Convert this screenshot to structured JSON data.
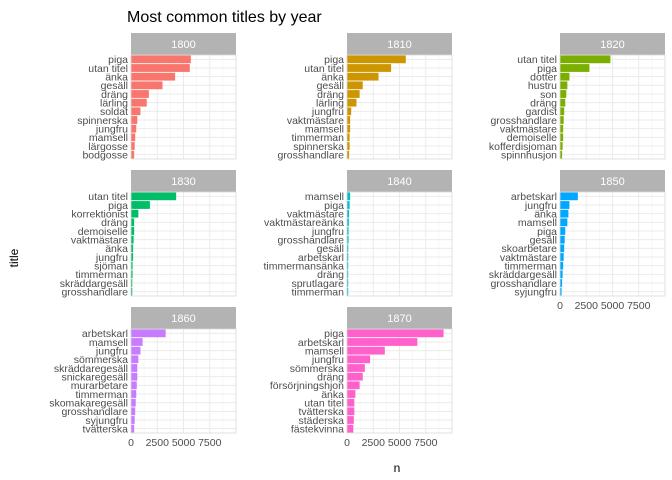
{
  "chart_data": {
    "type": "bar",
    "orientation": "horizontal",
    "title": "Most common titles by year",
    "xlabel": "n",
    "ylabel": "title",
    "xlim": [
      0,
      10000
    ],
    "xticks": [
      0,
      2500,
      5000,
      7500
    ],
    "xtick_labels": [
      "0",
      "2500",
      "5000",
      "7500"
    ],
    "grid": true,
    "legend": "none",
    "facets": [
      {
        "label": "1800",
        "color": "#F8766D",
        "bars": [
          {
            "title": "piga",
            "n": 5700
          },
          {
            "title": "utan titel",
            "n": 5600
          },
          {
            "title": "änka",
            "n": 4200
          },
          {
            "title": "gesäll",
            "n": 3000
          },
          {
            "title": "dräng",
            "n": 1700
          },
          {
            "title": "lärling",
            "n": 1500
          },
          {
            "title": "soldat",
            "n": 900
          },
          {
            "title": "spinnerska",
            "n": 600
          },
          {
            "title": "jungfru",
            "n": 500
          },
          {
            "title": "mamsell",
            "n": 400
          },
          {
            "title": "lärgosse",
            "n": 350
          },
          {
            "title": "bodgosse",
            "n": 300
          }
        ]
      },
      {
        "label": "1810",
        "color": "#CD9600",
        "bars": [
          {
            "title": "piga",
            "n": 5600
          },
          {
            "title": "utan titel",
            "n": 4200
          },
          {
            "title": "änka",
            "n": 3000
          },
          {
            "title": "gesäll",
            "n": 1500
          },
          {
            "title": "dräng",
            "n": 1200
          },
          {
            "title": "lärling",
            "n": 900
          },
          {
            "title": "jungfru",
            "n": 400
          },
          {
            "title": "vaktmästare",
            "n": 300
          },
          {
            "title": "mamsell",
            "n": 300
          },
          {
            "title": "timmerman",
            "n": 250
          },
          {
            "title": "spinnerska",
            "n": 250
          },
          {
            "title": "grosshandlare",
            "n": 200
          }
        ]
      },
      {
        "label": "1820",
        "color": "#7CAE00",
        "bars": [
          {
            "title": "utan titel",
            "n": 4800
          },
          {
            "title": "piga",
            "n": 2800
          },
          {
            "title": "dotter",
            "n": 900
          },
          {
            "title": "hustru",
            "n": 700
          },
          {
            "title": "son",
            "n": 600
          },
          {
            "title": "dräng",
            "n": 500
          },
          {
            "title": "gardist",
            "n": 400
          },
          {
            "title": "grosshandlare",
            "n": 350
          },
          {
            "title": "vaktmästare",
            "n": 300
          },
          {
            "title": "demoiselle",
            "n": 300
          },
          {
            "title": "kofferdisjoman",
            "n": 250
          },
          {
            "title": "spinnhusjon",
            "n": 200
          }
        ]
      },
      {
        "label": "1830",
        "color": "#00BE67",
        "bars": [
          {
            "title": "utan titel",
            "n": 4300
          },
          {
            "title": "piga",
            "n": 1800
          },
          {
            "title": "korrektionist",
            "n": 700
          },
          {
            "title": "dräng",
            "n": 300
          },
          {
            "title": "demoiselle",
            "n": 300
          },
          {
            "title": "vaktmästare",
            "n": 250
          },
          {
            "title": "änka",
            "n": 200
          },
          {
            "title": "jungfru",
            "n": 200
          },
          {
            "title": "sjöman",
            "n": 150
          },
          {
            "title": "timmerman",
            "n": 150
          },
          {
            "title": "skräddargesäll",
            "n": 120
          },
          {
            "title": "grosshandlare",
            "n": 120
          }
        ]
      },
      {
        "label": "1840",
        "color": "#00BFC4",
        "bars": [
          {
            "title": "mamsell",
            "n": 300
          },
          {
            "title": "piga",
            "n": 250
          },
          {
            "title": "vaktmästare",
            "n": 200
          },
          {
            "title": "vaktmästareänka",
            "n": 180
          },
          {
            "title": "jungfru",
            "n": 150
          },
          {
            "title": "grosshandlare",
            "n": 150
          },
          {
            "title": "gesäll",
            "n": 120
          },
          {
            "title": "arbetskarl",
            "n": 120
          },
          {
            "title": "timmermansänka",
            "n": 100
          },
          {
            "title": "dräng",
            "n": 100
          },
          {
            "title": "sprutlagare",
            "n": 80
          },
          {
            "title": "timmerman",
            "n": 80
          }
        ]
      },
      {
        "label": "1850",
        "color": "#00A9FF",
        "bars": [
          {
            "title": "arbetskarl",
            "n": 1700
          },
          {
            "title": "jungfru",
            "n": 900
          },
          {
            "title": "änka",
            "n": 800
          },
          {
            "title": "mamsell",
            "n": 700
          },
          {
            "title": "piga",
            "n": 500
          },
          {
            "title": "gesäll",
            "n": 450
          },
          {
            "title": "skoarbetare",
            "n": 400
          },
          {
            "title": "vaktmästare",
            "n": 350
          },
          {
            "title": "timmerman",
            "n": 300
          },
          {
            "title": "skräddargesäll",
            "n": 250
          },
          {
            "title": "grosshandlare",
            "n": 200
          },
          {
            "title": "syjungfru",
            "n": 150
          }
        ]
      },
      {
        "label": "1860",
        "color": "#C77CFF",
        "bars": [
          {
            "title": "arbetskarl",
            "n": 3300
          },
          {
            "title": "mamsell",
            "n": 1100
          },
          {
            "title": "jungfru",
            "n": 900
          },
          {
            "title": "sömmerska",
            "n": 700
          },
          {
            "title": "skräddaregesäll",
            "n": 600
          },
          {
            "title": "snickaregesäll",
            "n": 600
          },
          {
            "title": "murarbetare",
            "n": 550
          },
          {
            "title": "timmerman",
            "n": 500
          },
          {
            "title": "skomakaregesäll",
            "n": 450
          },
          {
            "title": "grosshandlare",
            "n": 400
          },
          {
            "title": "syjungfru",
            "n": 350
          },
          {
            "title": "tvätterska",
            "n": 300
          }
        ]
      },
      {
        "label": "1870",
        "color": "#FF61CC",
        "bars": [
          {
            "title": "piga",
            "n": 9200
          },
          {
            "title": "arbetskarl",
            "n": 6700
          },
          {
            "title": "mamsell",
            "n": 3600
          },
          {
            "title": "jungfru",
            "n": 2200
          },
          {
            "title": "sömmerska",
            "n": 1700
          },
          {
            "title": "dräng",
            "n": 1500
          },
          {
            "title": "försörjningshjon",
            "n": 1200
          },
          {
            "title": "änka",
            "n": 800
          },
          {
            "title": "utan titel",
            "n": 700
          },
          {
            "title": "tvätterska",
            "n": 700
          },
          {
            "title": "städerska",
            "n": 650
          },
          {
            "title": "fästekvinna",
            "n": 600
          }
        ]
      }
    ]
  }
}
